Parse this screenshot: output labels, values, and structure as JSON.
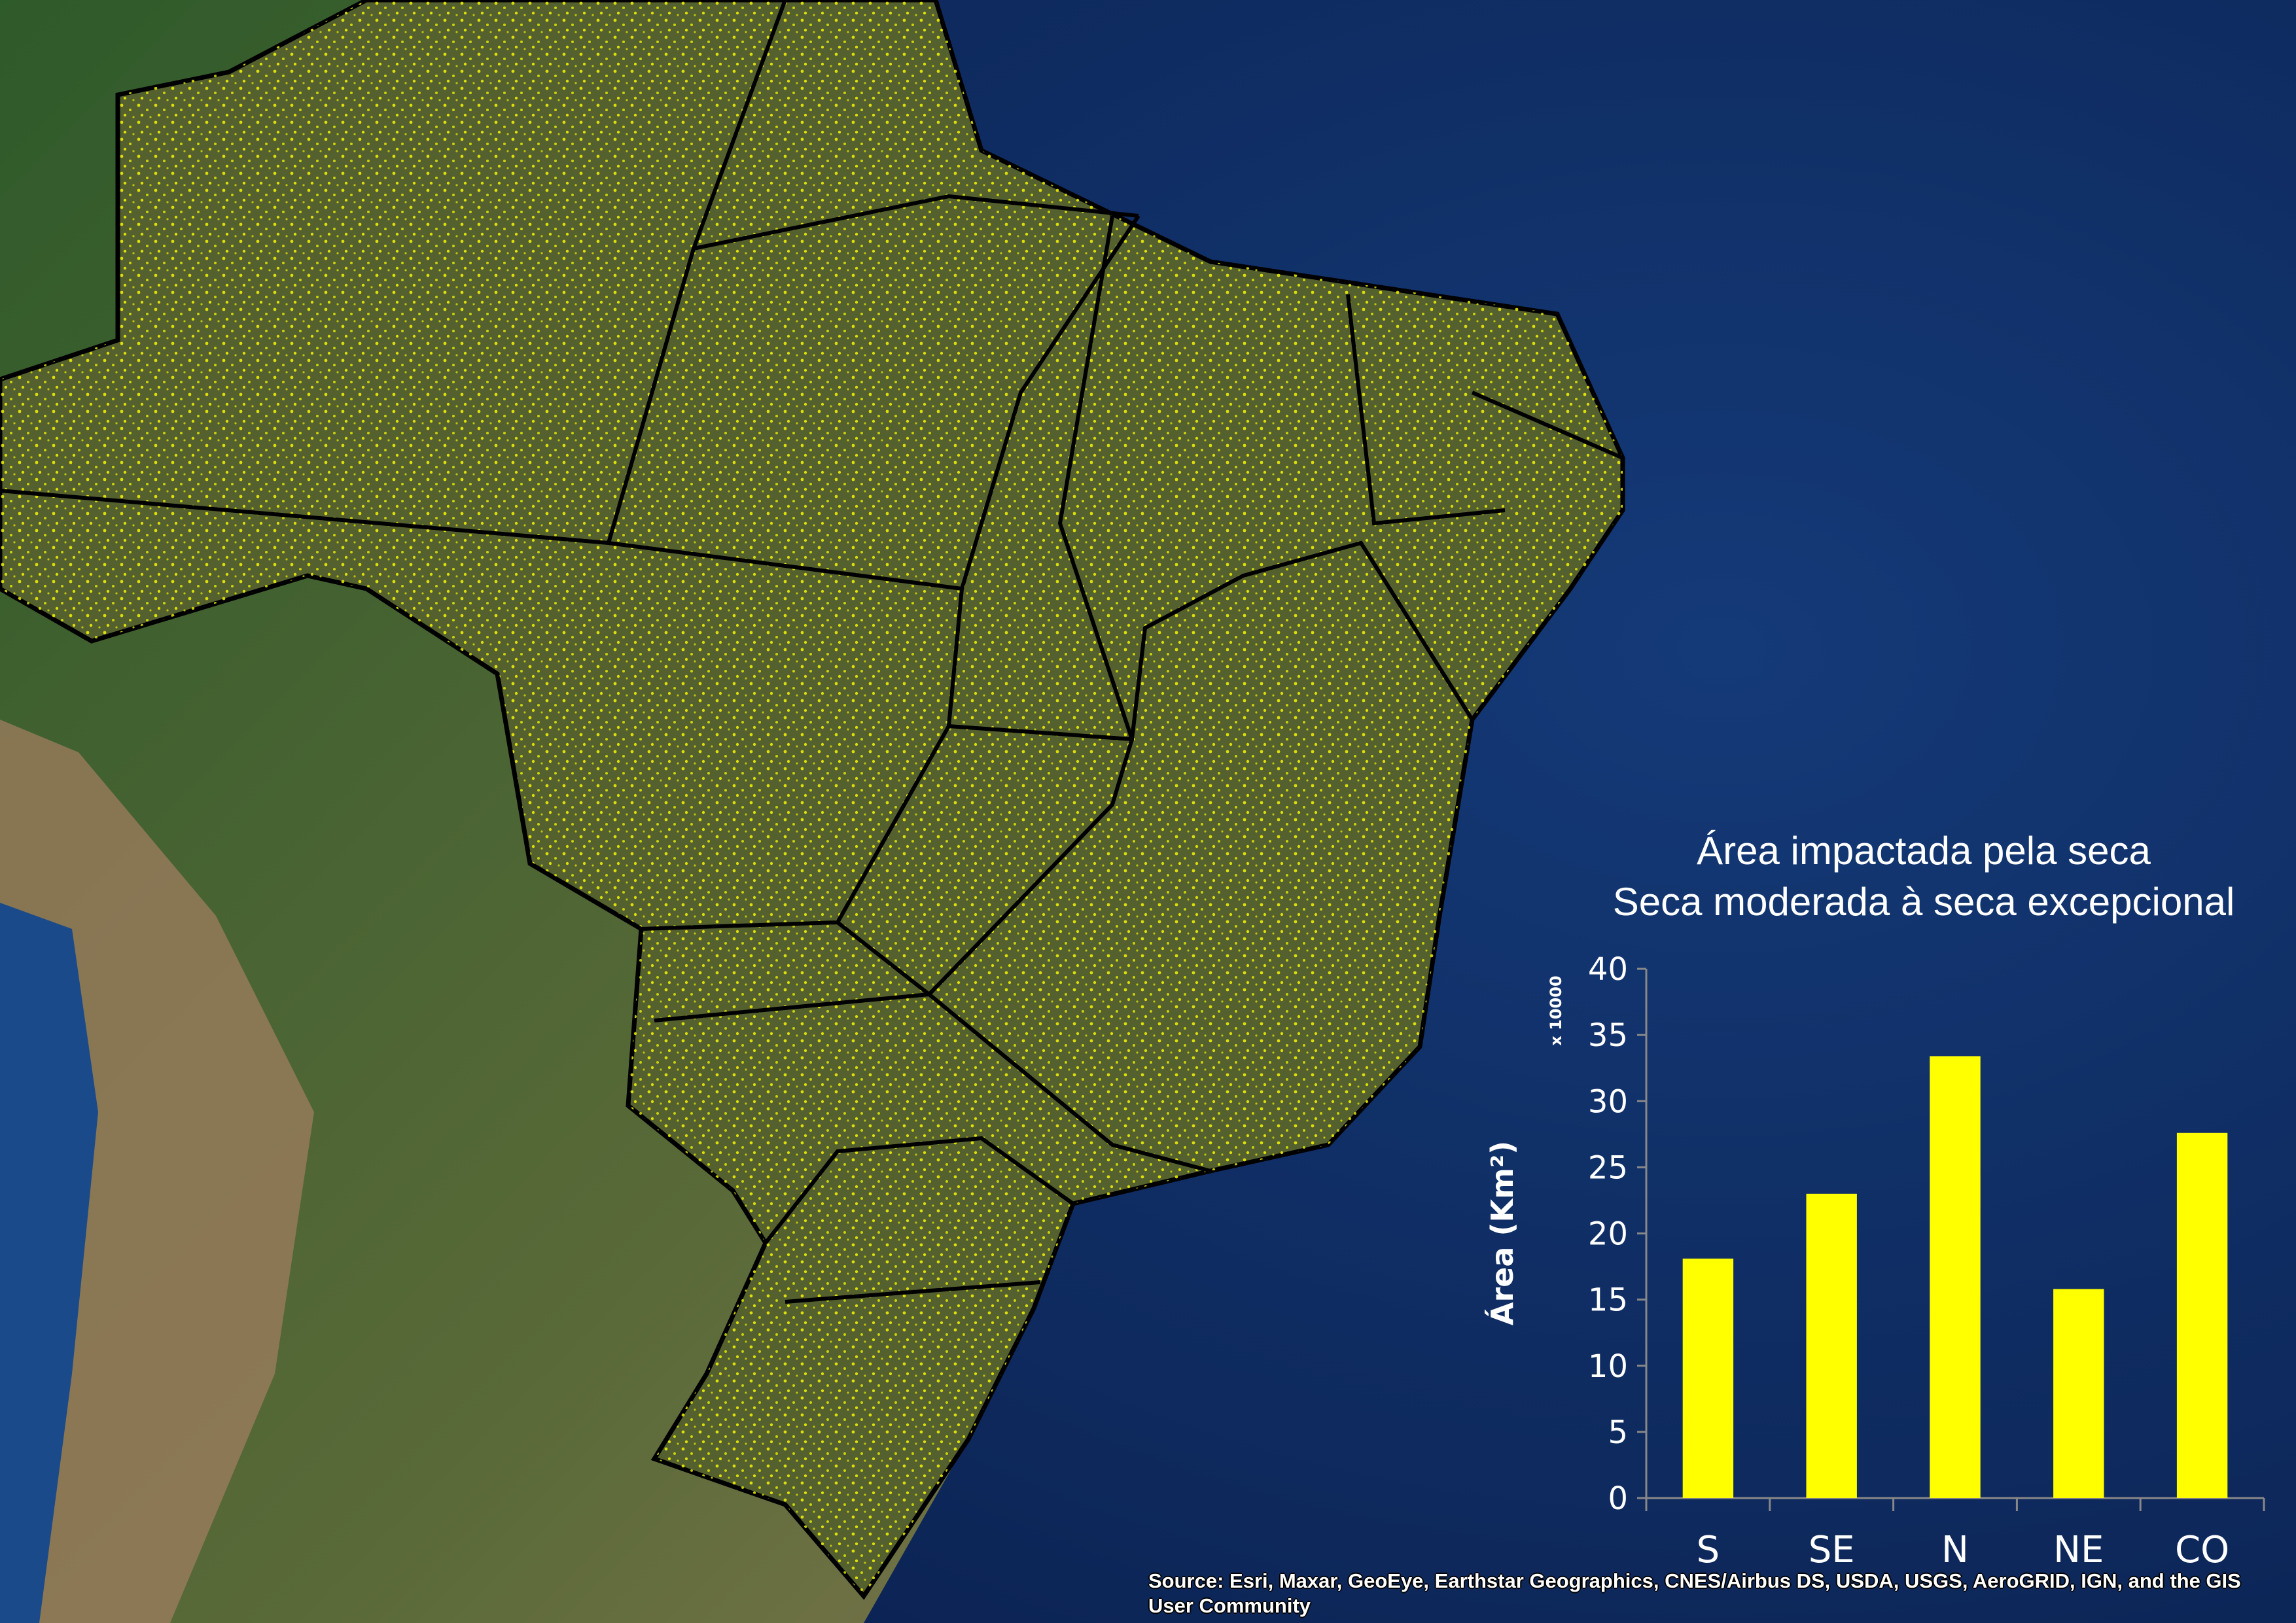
{
  "map": {
    "subject": "Brazil drought-impacted area",
    "colors": {
      "ocean": "#12306a",
      "land": "#4a5a2e",
      "drought_points": "#ffff00",
      "borders": "#000000"
    }
  },
  "chart_data": {
    "type": "bar",
    "title": "Área impactada pela seca",
    "subtitle": "Seca moderada à seca excepcional",
    "xlabel": "",
    "ylabel": "Área (Km²)",
    "y_multiplier": "x 10000",
    "categories": [
      "S",
      "SE",
      "N",
      "NE",
      "CO"
    ],
    "values": [
      18.1,
      23.0,
      33.4,
      15.8,
      27.6
    ],
    "ylim": [
      0,
      40
    ],
    "yticks": [
      "0",
      "5",
      "10",
      "15",
      "20",
      "25",
      "30",
      "35",
      "40"
    ],
    "bar_color": "#ffff00",
    "grid": false
  },
  "attribution": "Source: Esri, Maxar, GeoEye, Earthstar Geographics, CNES/Airbus DS, USDA, USGS, AeroGRID, IGN, and the GIS User Community"
}
